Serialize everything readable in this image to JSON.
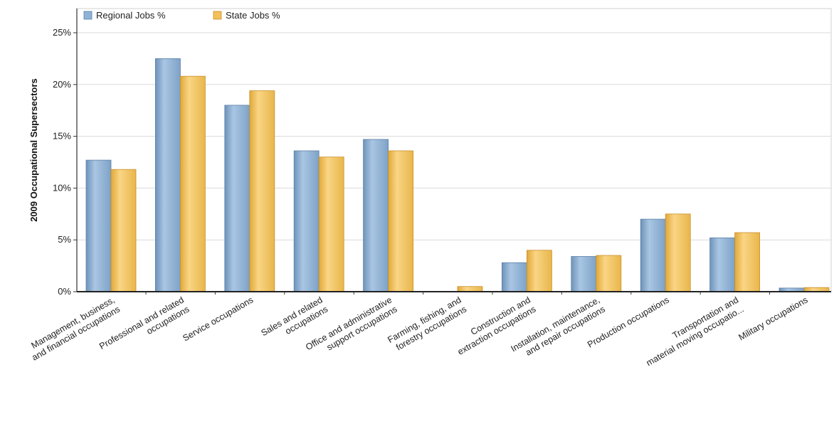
{
  "chart_data": {
    "type": "bar",
    "ylabel": "2009 Occupational Supersectors",
    "ylim": [
      0,
      25
    ],
    "yticks": [
      0,
      5,
      10,
      15,
      20,
      25
    ],
    "ytick_suffix": "%",
    "grid": true,
    "legend_position": "top-left",
    "categories": [
      [
        "Management, business,",
        "and financial occupations"
      ],
      [
        "Professional and related",
        "occupations"
      ],
      [
        "Service occupations"
      ],
      [
        "Sales and related",
        "occupations"
      ],
      [
        "Office and administrative",
        "support occupations"
      ],
      [
        "Farming, fishing, and",
        "forestry occupations"
      ],
      [
        "Construction and",
        "extraction occupations"
      ],
      [
        "Installation, maintenance,",
        "and repair occupations"
      ],
      [
        "Production occupations"
      ],
      [
        "Transportation and",
        "material moving occupatio..."
      ],
      [
        "Military occupations"
      ]
    ],
    "series": [
      {
        "name": "Regional Jobs %",
        "color": "#8fb3d6",
        "values": [
          12.7,
          22.5,
          18.0,
          13.6,
          14.7,
          0.0,
          2.8,
          3.4,
          7.0,
          5.2,
          0.35
        ]
      },
      {
        "name": "State Jobs %",
        "color": "#f2c15a",
        "values": [
          11.8,
          20.8,
          19.4,
          13.0,
          13.6,
          0.5,
          4.0,
          3.5,
          7.5,
          5.7,
          0.4
        ]
      }
    ]
  }
}
